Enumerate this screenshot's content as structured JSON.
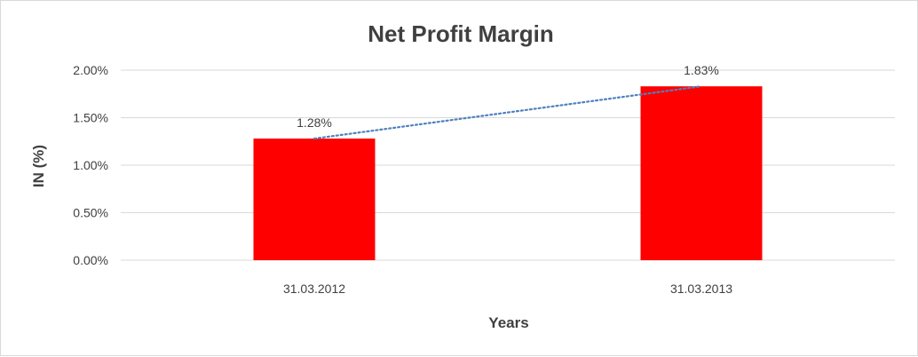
{
  "chart_data": {
    "type": "bar",
    "title": "Net Profit Margin",
    "xlabel": "Years",
    "ylabel": "IN (%)",
    "categories": [
      "31.03.2012",
      "31.03.2013"
    ],
    "series": [
      {
        "values": [
          1.28,
          1.83
        ],
        "color": "#ff0000"
      }
    ],
    "data_labels": [
      "1.28%",
      "1.83%"
    ],
    "ylim": [
      0,
      2
    ],
    "yticks": [
      0,
      0.5,
      1.0,
      1.5,
      2.0
    ],
    "ytick_labels": [
      "0.00%",
      "0.50%",
      "1.00%",
      "1.50%",
      "2.00%"
    ],
    "grid": true,
    "trendline": {
      "type": "linear",
      "style": "dotted",
      "color": "#4f81bd"
    }
  }
}
